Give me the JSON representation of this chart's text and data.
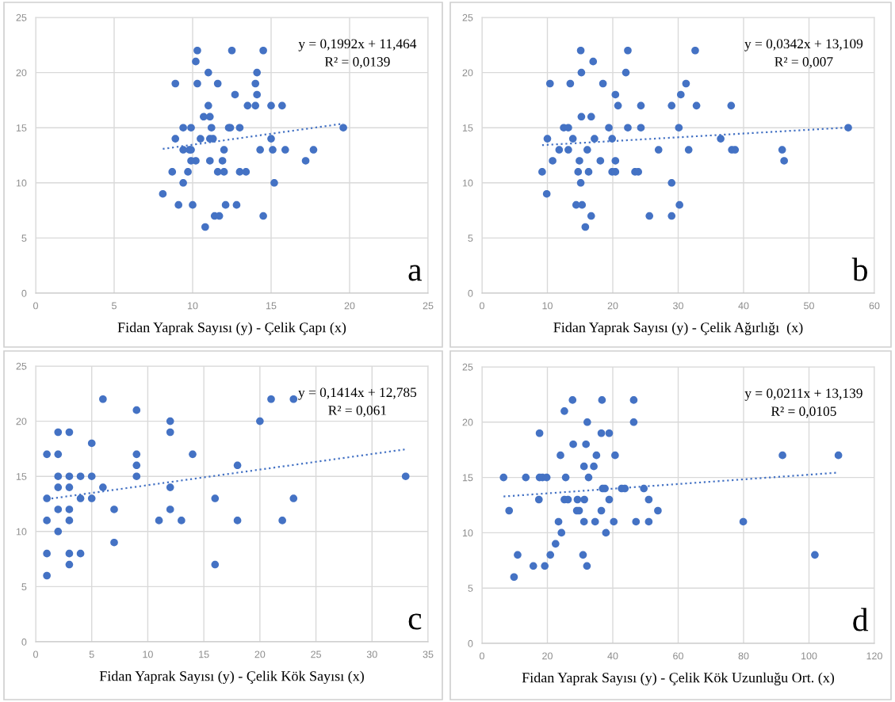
{
  "chart_data": [
    {
      "type": "scatter",
      "xlabel": "Fidan Yaprak Sayısı (y) - Çelik Çapı (x)",
      "xlim": [
        0,
        25
      ],
      "xticks": [
        0,
        5,
        10,
        15,
        20,
        25
      ],
      "ylim": [
        0,
        25
      ],
      "yticks": [
        0,
        5,
        10,
        15,
        20,
        25
      ],
      "grid": true,
      "annotations": [
        "y = 0,1992x + 11,464",
        "R² = 0,0139",
        "a"
      ],
      "series": [
        {
          "marker": "circle",
          "color": "#4472c4",
          "x": [
            10.3,
            12.5,
            14.5,
            10.2,
            11.0,
            14.1,
            8.9,
            10.3,
            11.6,
            14.0,
            12.7,
            14.1,
            11.0,
            13.5,
            14.0,
            15.0,
            15.7,
            10.7,
            11.1,
            9.4,
            9.9,
            11.2,
            12.3,
            12.4,
            13.0,
            19.6,
            8.9,
            10.5,
            11.1,
            11.3,
            15.0,
            9.4,
            9.8,
            9.9,
            12.0,
            14.3,
            15.1,
            15.9,
            17.7,
            9.9,
            10.2,
            11.1,
            11.9,
            17.2,
            8.7,
            9.7,
            11.6,
            12.0,
            13.0,
            13.4,
            9.4,
            15.2,
            8.1,
            9.1,
            10.0,
            12.1,
            12.8,
            11.4,
            11.7,
            14.5,
            10.8
          ],
          "values": [
            22,
            22,
            22,
            21,
            20,
            20,
            19,
            19,
            19,
            19,
            18,
            18,
            17,
            17,
            17,
            17,
            17,
            16,
            16,
            15,
            15,
            15,
            15,
            15,
            15,
            15,
            14,
            14,
            14,
            14,
            14,
            13,
            13,
            13,
            13,
            13,
            13,
            13,
            13,
            12,
            12,
            12,
            12,
            12,
            11,
            11,
            11,
            11,
            11,
            11,
            10,
            10,
            9,
            8,
            8,
            8,
            8,
            7,
            7,
            7,
            6
          ]
        },
        {
          "type": "line",
          "line_style": "dotted",
          "color": "#4472c4",
          "x": [
            8.1,
            19.6
          ],
          "values": [
            13.08,
            15.37
          ]
        }
      ]
    },
    {
      "type": "scatter",
      "xlabel": "Fidan Yaprak Sayısı (y) - Çelik Ağırlığı  (x)",
      "xlim": [
        0,
        60
      ],
      "xticks": [
        0,
        10,
        20,
        30,
        40,
        50,
        60
      ],
      "ylim": [
        0,
        25
      ],
      "yticks": [
        0,
        5,
        10,
        15,
        20,
        25
      ],
      "grid": true,
      "annotations": [
        "y = 0,0342x + 13,109",
        "R² = 0,007",
        "b"
      ],
      "series": [
        {
          "marker": "circle",
          "color": "#4472c4",
          "x": [
            15.1,
            22.3,
            32.6,
            17.0,
            15.2,
            22.0,
            10.4,
            13.5,
            18.5,
            31.2,
            20.4,
            30.4,
            20.8,
            24.3,
            29.0,
            32.8,
            38.1,
            15.2,
            16.7,
            12.5,
            13.2,
            19.4,
            22.3,
            24.3,
            30.1,
            56.0,
            10.0,
            13.9,
            17.2,
            19.9,
            36.5,
            11.8,
            13.2,
            16.1,
            27.0,
            31.6,
            38.2,
            38.7,
            45.9,
            10.8,
            14.9,
            18.1,
            20.4,
            46.2,
            9.2,
            14.7,
            16.3,
            19.9,
            20.4,
            23.4,
            23.9,
            15.1,
            29.0,
            9.9,
            14.4,
            15.3,
            30.2,
            16.7,
            25.6,
            29.0,
            15.8
          ],
          "values": [
            22,
            22,
            22,
            21,
            20,
            20,
            19,
            19,
            19,
            19,
            18,
            18,
            17,
            17,
            17,
            17,
            17,
            16,
            16,
            15,
            15,
            15,
            15,
            15,
            15,
            15,
            14,
            14,
            14,
            14,
            14,
            13,
            13,
            13,
            13,
            13,
            13,
            13,
            13,
            12,
            12,
            12,
            12,
            12,
            11,
            11,
            11,
            11,
            11,
            11,
            11,
            10,
            10,
            9,
            8,
            8,
            8,
            7,
            7,
            7,
            6
          ]
        },
        {
          "type": "line",
          "line_style": "dotted",
          "color": "#4472c4",
          "x": [
            9.2,
            56.0
          ],
          "values": [
            13.42,
            15.02
          ]
        }
      ]
    },
    {
      "type": "scatter",
      "xlabel": "Fidan Yaprak Sayısı (y) - Çelik Kök Sayısı (x)",
      "xlim": [
        0,
        35
      ],
      "xticks": [
        0,
        5,
        10,
        15,
        20,
        25,
        30,
        35
      ],
      "ylim": [
        0,
        25
      ],
      "yticks": [
        0,
        5,
        10,
        15,
        20,
        25
      ],
      "grid": true,
      "annotations": [
        "y = 0,1414x + 12,785",
        "R² = 0,061",
        "c"
      ],
      "series": [
        {
          "marker": "circle",
          "color": "#4472c4",
          "x": [
            1,
            1,
            1,
            1,
            1,
            2,
            2,
            2,
            2,
            2,
            2,
            3,
            3,
            3,
            3,
            3,
            3,
            3,
            4,
            4,
            4,
            5,
            5,
            5,
            6,
            6,
            7,
            7,
            9,
            9,
            9,
            9,
            11,
            12,
            12,
            12,
            12,
            13,
            14,
            16,
            16,
            18,
            18,
            20,
            21,
            22,
            23,
            23,
            33
          ],
          "values": [
            17,
            13,
            11,
            8,
            6,
            19,
            17,
            15,
            14,
            12,
            10,
            19,
            15,
            14,
            12,
            11,
            8,
            7,
            15,
            13,
            8,
            18,
            15,
            13,
            22,
            14,
            12,
            9,
            21,
            17,
            16,
            15,
            11,
            20,
            19,
            14,
            12,
            11,
            17,
            13,
            7,
            16,
            11,
            20,
            22,
            11,
            22,
            13,
            15
          ]
        },
        {
          "type": "line",
          "line_style": "dotted",
          "color": "#4472c4",
          "x": [
            1,
            33
          ],
          "values": [
            12.93,
            17.45
          ]
        }
      ]
    },
    {
      "type": "scatter",
      "xlabel": "Fidan Yaprak Sayısı (y) - Çelik Kök Uzunluğu Ort. (x)",
      "xlim": [
        0,
        120
      ],
      "xticks": [
        0,
        20,
        40,
        60,
        80,
        100,
        120
      ],
      "ylim": [
        0,
        25
      ],
      "yticks": [
        0,
        5,
        10,
        15,
        20,
        25
      ],
      "grid": true,
      "annotations": [
        "y = 0,0211x + 13,139",
        "R² = 0,0105",
        "d"
      ],
      "series": [
        {
          "marker": "circle",
          "color": "#4472c4",
          "x": [
            27.7,
            36.7,
            46.4,
            25.2,
            32.2,
            46.4,
            17.6,
            36.5,
            38.9,
            27.9,
            31.8,
            24.0,
            35.0,
            40.7,
            91.9,
            109.0,
            31.2,
            34.2,
            6.6,
            13.4,
            17.6,
            18.5,
            19.8,
            25.6,
            32.6,
            36.9,
            37.6,
            42.7,
            43.7,
            49.5,
            17.4,
            25.2,
            26.3,
            29.2,
            31.3,
            38.9,
            51.0,
            8.3,
            29.0,
            29.7,
            36.5,
            53.8,
            23.4,
            31.2,
            34.6,
            40.3,
            47.1,
            51.0,
            79.9,
            24.3,
            37.9,
            22.5,
            10.9,
            20.9,
            30.9,
            101.8,
            15.7,
            19.2,
            32.1,
            9.8
          ],
          "values": [
            22,
            22,
            22,
            21,
            20,
            20,
            19,
            19,
            19,
            18,
            18,
            17,
            17,
            17,
            17,
            17,
            16,
            16,
            15,
            15,
            15,
            15,
            15,
            15,
            15,
            14,
            14,
            14,
            14,
            14,
            13,
            13,
            13,
            13,
            13,
            13,
            13,
            12,
            12,
            12,
            12,
            12,
            11,
            11,
            11,
            11,
            11,
            11,
            11,
            10,
            10,
            9,
            8,
            8,
            8,
            8,
            7,
            7,
            7,
            6
          ]
        },
        {
          "type": "line",
          "line_style": "dotted",
          "color": "#4472c4",
          "x": [
            6.6,
            109.0
          ],
          "values": [
            13.28,
            15.44
          ]
        }
      ]
    }
  ]
}
